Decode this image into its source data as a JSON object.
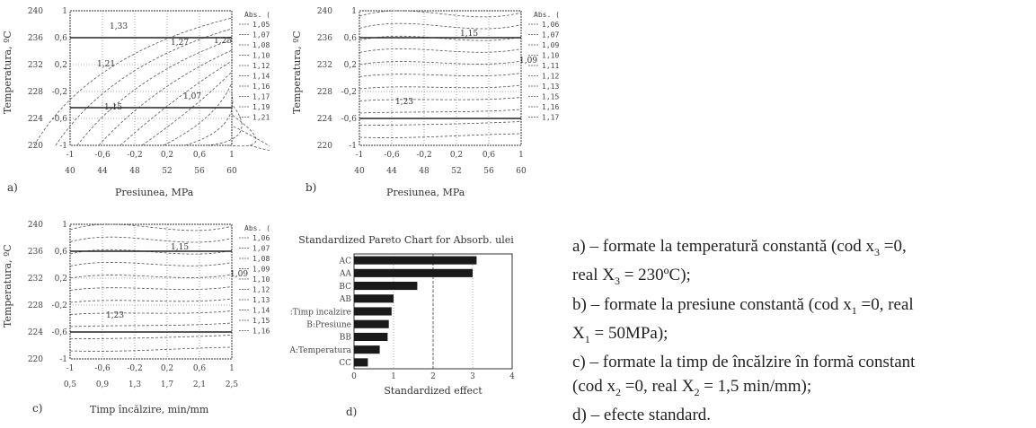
{
  "panels": {
    "a": {
      "letter": "a)",
      "xlabel": "Presiunea, MPa",
      "ylabel": "Temperatura, ºC",
      "y_code_ticks": [
        "1",
        "0,6",
        "0,2",
        "-0,2",
        "-0,6",
        "-1"
      ],
      "y_real_ticks": [
        "240",
        "236",
        "232",
        "228",
        "224",
        "220"
      ],
      "x_code_ticks": [
        "-1",
        "-0,6",
        "-0,2",
        "0,2",
        "0,6",
        "1"
      ],
      "x_real_ticks": [
        "40",
        "44",
        "48",
        "52",
        "56",
        "60"
      ],
      "legend_title": "Abs. (Δ %)",
      "legend": [
        "1,053",
        "1,071",
        "1,089",
        "1,107",
        "1,125",
        "1,143",
        "1,161",
        "1,179",
        "1,197",
        "1,215"
      ],
      "contour_labels": [
        "1,33",
        "1,27",
        "1,25",
        "1,21",
        "1,07",
        "1,15"
      ]
    },
    "b": {
      "letter": "b)",
      "xlabel": "Presiunea, MPa",
      "ylabel": "Temperatura, ºC",
      "y_code_ticks": [
        "1",
        "0,6",
        "0,2",
        "-0,2",
        "-0,6",
        "-1"
      ],
      "y_real_ticks": [
        "240",
        "236",
        "232",
        "228",
        "224",
        "220"
      ],
      "x_code_ticks": [
        "-1",
        "-0,6",
        "-0,2",
        "0,2",
        "0,6",
        "1"
      ],
      "x_real_ticks": [
        "40",
        "44",
        "48",
        "52",
        "56",
        "60"
      ],
      "legend_title": "Abs. (Δ %)",
      "legend": [
        "1,067",
        "1,079",
        "1,091",
        "1,103",
        "1,115",
        "1,127",
        "1,139",
        "1,151",
        "1,163",
        "1,175"
      ],
      "contour_labels": [
        "1,15",
        "1,09",
        "1,23"
      ]
    },
    "c": {
      "letter": "c)",
      "xlabel": "Timp încălzire, min/mm",
      "ylabel": "Temperatura, ºC",
      "y_code_ticks": [
        "1",
        "0,6",
        "0,2",
        "-0,2",
        "-0,6",
        "-1"
      ],
      "y_real_ticks": [
        "240",
        "236",
        "232",
        "228",
        "224",
        "220"
      ],
      "x_code_ticks": [
        "-1",
        "-0,6",
        "-0,2",
        "0,2",
        "0,6",
        "1"
      ],
      "x_real_ticks": [
        "0,5",
        "0,9",
        "1,3",
        "1,7",
        "2,1",
        "2,5"
      ],
      "legend_title": "Abs. (Δ %)",
      "legend": [
        "1,061",
        "1,073",
        "1,085",
        "1,097",
        "1,109",
        "1,121",
        "1,133",
        "1,145",
        "1,157",
        "1,169"
      ],
      "contour_labels": [
        "1,15",
        "1,09",
        "1,23"
      ]
    },
    "d": {
      "letter": "d)",
      "xlabel": "Standardized effect",
      "title": "Standardized Pareto Chart for Absorb. ulei"
    }
  },
  "chart_data": [
    {
      "type": "bar",
      "title": "Standardized Pareto Chart for Absorb. ulei",
      "xlabel": "Standardized effect",
      "ylabel": "",
      "orientation": "horizontal",
      "categories": [
        "AC",
        "AA",
        "BC",
        "AB",
        "C:Timp incalzire",
        "B:Presiune",
        "BB",
        "A:Temperatura",
        "CC"
      ],
      "values": [
        3.1,
        3.0,
        1.6,
        1.0,
        0.95,
        0.88,
        0.85,
        0.65,
        0.35
      ],
      "xlim": [
        0,
        4
      ],
      "x_ticks": [
        "0",
        "1",
        "2",
        "3",
        "4"
      ],
      "colors": {
        "bar": "#1a1a1a"
      }
    }
  ],
  "caption": {
    "line1": "a) – formate la temperatură constantă (cod x",
    "line1_sub": "3",
    "line1_end": " =0,",
    "line2": "real X",
    "line2_sub": "3",
    "line2_end": " = 230ºC);",
    "line3": "b) – formate la presiune constantă (cod x",
    "line3_sub": "1",
    "line3_end": " =0, real",
    "line4": "X",
    "line4_sub": "1",
    "line4_end": " = 50MPa);",
    "line5": "c) – formate la timp de încălzire în formă constant",
    "line6": "(cod x",
    "line6_sub": "2",
    "line6_mid": " =0, real X",
    "line6_sub2": "2",
    "line6_end": " = 1,5 min/mm);",
    "line7": "d) – efecte standard."
  }
}
